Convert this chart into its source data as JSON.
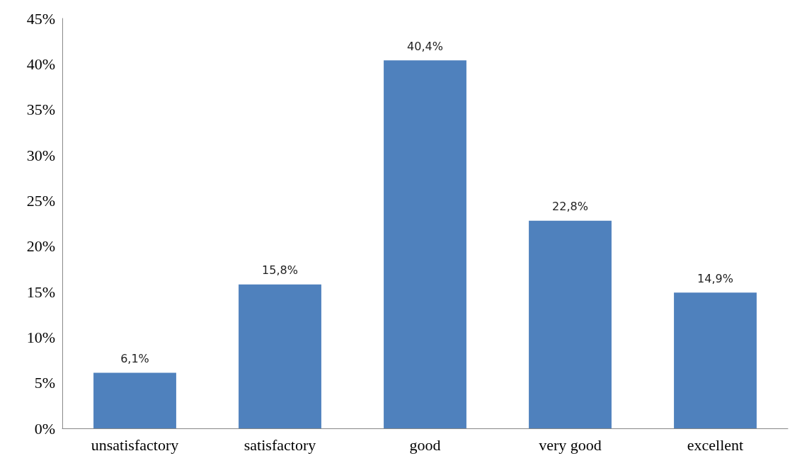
{
  "chart_data": {
    "type": "bar",
    "categories": [
      "unsatisfactory",
      "satisfactory",
      "good",
      "very good",
      "excellent"
    ],
    "values": [
      6.1,
      15.8,
      40.4,
      22.8,
      14.9
    ],
    "value_labels": [
      "6,1%",
      "15,8%",
      "40,4%",
      "22,8%",
      "14,9%"
    ],
    "color": "#4f81bd",
    "ylim": [
      0,
      45
    ],
    "yticks": [
      {
        "value": 0,
        "label": "0%"
      },
      {
        "value": 5,
        "label": "5%"
      },
      {
        "value": 10,
        "label": "10%"
      },
      {
        "value": 15,
        "label": "15%"
      },
      {
        "value": 20,
        "label": "20%"
      },
      {
        "value": 25,
        "label": "25%"
      },
      {
        "value": 30,
        "label": "30%"
      },
      {
        "value": 35,
        "label": "35%"
      },
      {
        "value": 40,
        "label": "40%"
      },
      {
        "value": 45,
        "label": "45%"
      }
    ],
    "grid": false
  }
}
